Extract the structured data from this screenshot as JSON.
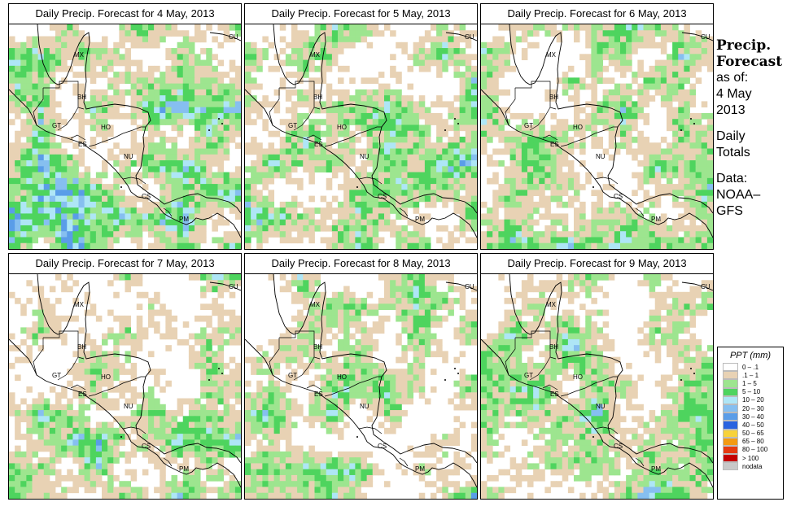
{
  "panels": [
    {
      "title": "Daily Precip. Forecast for  4 May, 2013",
      "seed": 11,
      "wet": 0.9
    },
    {
      "title": "Daily Precip. Forecast for  5 May, 2013",
      "seed": 23,
      "wet": 0.65
    },
    {
      "title": "Daily Precip. Forecast for  6 May, 2013",
      "seed": 37,
      "wet": 0.75
    },
    {
      "title": "Daily Precip. Forecast for  7 May, 2013",
      "seed": 41,
      "wet": 0.7
    },
    {
      "title": "Daily Precip. Forecast for  8 May, 2013",
      "seed": 53,
      "wet": 0.5
    },
    {
      "title": "Daily Precip. Forecast for  9 May, 2013",
      "seed": 67,
      "wet": 0.55
    }
  ],
  "map_labels": [
    "MX",
    "BH",
    "GT",
    "HO",
    "ES",
    "NU",
    "CS",
    "PM",
    "CU"
  ],
  "sidebar": {
    "heading1": "Precip.",
    "heading2": "Forecast",
    "asof": "as of:",
    "date1": "4 May",
    "date2": "2013",
    "daily1": "Daily",
    "daily2": "Totals",
    "data1": "Data:",
    "data2": "NOAA–",
    "data3": "GFS"
  },
  "legend": {
    "title": "PPT (mm)",
    "items": [
      {
        "label": "0 – .1",
        "color": "#ffffff"
      },
      {
        "label": ".1 – 1",
        "color": "#e8d2b4"
      },
      {
        "label": "1 – 5",
        "color": "#9de58f"
      },
      {
        "label": "5 – 10",
        "color": "#4ed45e"
      },
      {
        "label": "10 – 20",
        "color": "#aee6f6"
      },
      {
        "label": "20 – 30",
        "color": "#86bff0"
      },
      {
        "label": "30 – 40",
        "color": "#5a9de8"
      },
      {
        "label": "40 – 50",
        "color": "#2a63e0"
      },
      {
        "label": "50 – 65",
        "color": "#f7d23a"
      },
      {
        "label": "65 – 80",
        "color": "#f39a12"
      },
      {
        "label": "80 – 100",
        "color": "#e63a10"
      },
      {
        "label": "> 100",
        "color": "#c40000"
      },
      {
        "label": "nodata",
        "color": "#c8c8c8"
      }
    ]
  }
}
